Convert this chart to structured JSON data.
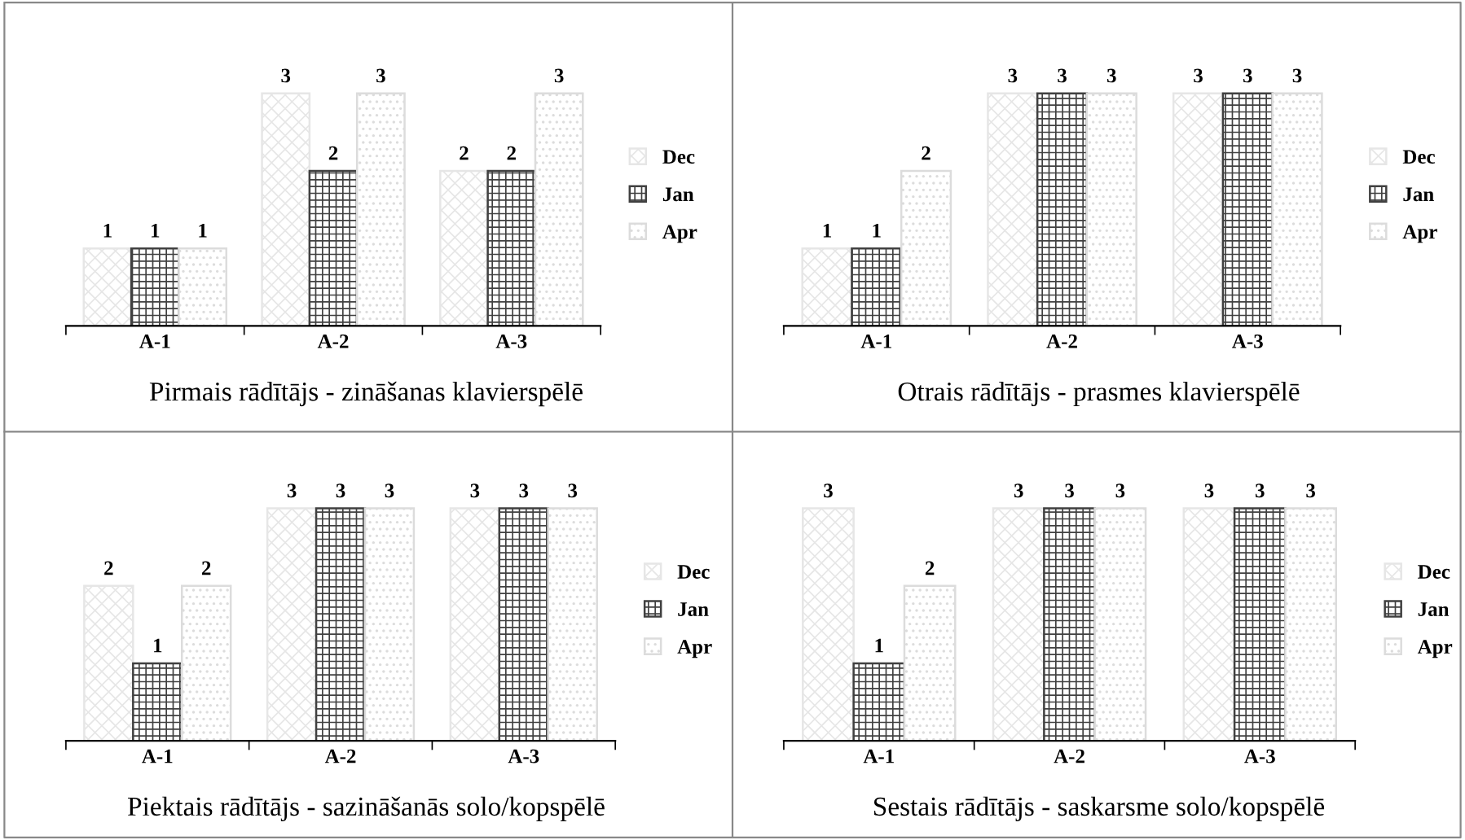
{
  "chart_data": [
    {
      "type": "bar",
      "title": "Pirmais rādītājs - zināšanas klavierspēlē",
      "categories": [
        "A-1",
        "A-2",
        "A-3"
      ],
      "data_labels": true,
      "legend": "right",
      "grid": false,
      "series": [
        {
          "name": "Dec",
          "color": "#e6e6e6",
          "values": [
            1,
            3,
            2
          ]
        },
        {
          "name": "Jan",
          "color": "#404040",
          "values": [
            1,
            2,
            2
          ]
        },
        {
          "name": "Apr",
          "color": "#dcdcdc",
          "values": [
            1,
            3,
            3
          ]
        }
      ]
    },
    {
      "type": "bar",
      "title": "Otrais rādītājs - prasmes klavierspēlē",
      "categories": [
        "A-1",
        "A-2",
        "A-3"
      ],
      "data_labels": true,
      "legend": "right",
      "grid": false,
      "series": [
        {
          "name": "Dec",
          "color": "#e6e6e6",
          "values": [
            1,
            3,
            3
          ]
        },
        {
          "name": "Jan",
          "color": "#404040",
          "values": [
            1,
            3,
            3
          ]
        },
        {
          "name": "Apr",
          "color": "#dcdcdc",
          "values": [
            2,
            3,
            3
          ]
        }
      ]
    },
    {
      "type": "bar",
      "title": "Piektais rādītājs - sazināšanās solo/kopspēlē",
      "categories": [
        "A-1",
        "A-2",
        "A-3"
      ],
      "data_labels": true,
      "legend": "right",
      "grid": false,
      "series": [
        {
          "name": "Dec",
          "color": "#e6e6e6",
          "values": [
            2,
            3,
            3
          ]
        },
        {
          "name": "Jan",
          "color": "#404040",
          "values": [
            1,
            3,
            3
          ]
        },
        {
          "name": "Apr",
          "color": "#dcdcdc",
          "values": [
            2,
            3,
            3
          ]
        }
      ]
    },
    {
      "type": "bar",
      "title": "Sestais rādītājs - saskarsme solo/kopspēlē",
      "categories": [
        "A-1",
        "A-2",
        "A-3"
      ],
      "data_labels": true,
      "legend": "right",
      "grid": false,
      "series": [
        {
          "name": "Dec",
          "color": "#e6e6e6",
          "values": [
            3,
            3,
            3
          ]
        },
        {
          "name": "Jan",
          "color": "#404040",
          "values": [
            1,
            3,
            3
          ]
        },
        {
          "name": "Apr",
          "color": "#dcdcdc",
          "values": [
            2,
            3,
            3
          ]
        }
      ]
    }
  ]
}
